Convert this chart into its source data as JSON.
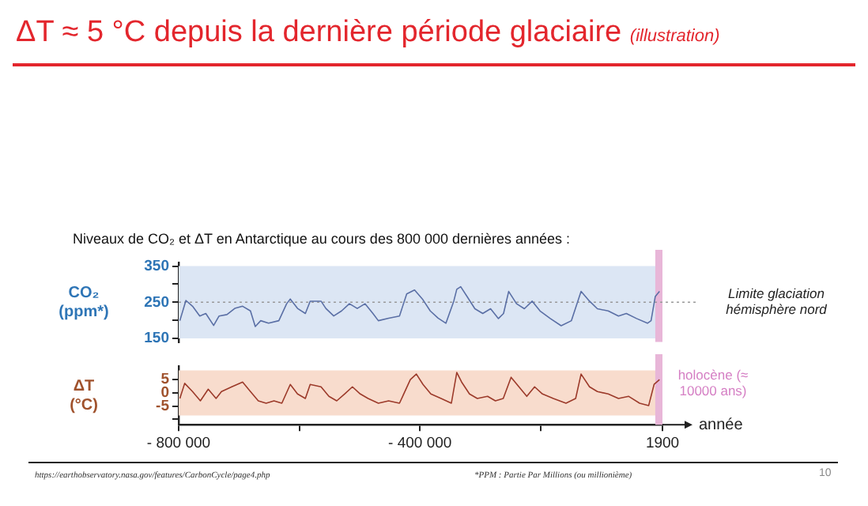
{
  "chart_data": [
    {
      "type": "line",
      "title": "ΔT ≈ 5 °C depuis la dernière période glaciaire",
      "subtitle": "(illustration)",
      "ylabel": "CO₂ (ppm*)",
      "x": [
        -798000,
        -788000,
        -777000,
        -765000,
        -755000,
        -742000,
        -733000,
        -720000,
        -707000,
        -694000,
        -681000,
        -673000,
        -664000,
        -651000,
        -634000,
        -621000,
        -615000,
        -603000,
        -590000,
        -582000,
        -564000,
        -556000,
        -543000,
        -530000,
        -517000,
        -504000,
        -491000,
        -478000,
        -469000,
        -452000,
        -434000,
        -422000,
        -409000,
        -396000,
        -383000,
        -370000,
        -357000,
        -344000,
        -339000,
        -332500,
        -322000,
        -309000,
        -296000,
        -283000,
        -270000,
        -261500,
        -253000,
        -240000,
        -227000,
        -214000,
        -201000,
        -184000,
        -166000,
        -149000,
        -133000,
        -119000,
        -106000,
        -88000,
        -71000,
        -58000,
        -41000,
        -23000,
        -17000,
        -10000,
        -3000
      ],
      "series": [
        {
          "color": "#5a6fa5",
          "values": [
            199,
            255,
            239,
            212,
            219,
            186,
            212,
            216,
            233,
            239,
            226,
            183,
            199,
            192,
            199,
            246,
            259,
            233,
            219,
            253,
            253,
            233,
            212,
            226,
            246,
            233,
            246,
            219,
            199,
            206,
            212,
            273,
            284,
            259,
            226,
            206,
            192,
            253,
            286,
            293,
            266,
            232,
            219,
            232,
            205,
            219,
            280,
            246,
            232,
            253,
            226,
            205,
            185,
            199,
            280,
            253,
            232,
            226,
            212,
            219,
            205,
            192,
            199,
            266,
            280
          ]
        }
      ],
      "xlim": [
        -800000,
        1900
      ],
      "ylim": [
        140,
        360
      ],
      "yticks": [
        150,
        {
          "value": 200,
          "label": null
        },
        250,
        {
          "value": 300,
          "label": null
        },
        350
      ],
      "tick_labels": "y",
      "bands": [
        {
          "axis": "y",
          "from": 150,
          "to": 350,
          "color": "#dce6f4"
        },
        {
          "axis": "x",
          "from": -10000,
          "to": 1900,
          "color": "#e8b6d8"
        }
      ],
      "ref_lines": [
        {
          "axis": "y",
          "value": 250,
          "label": "Limite glaciation hémisphère nord",
          "color": "#999999",
          "line_style": "dotted"
        }
      ],
      "annotations": [
        "Niveaux de CO₂ et ΔT en Antarctique au cours des 800 000 dernières années :",
        "https://earthobservatory.nasa.gov/features/CarbonCycle/page4.php",
        "*PPM : Partie Par Millions (ou millionième)",
        "10"
      ],
      "grid": false,
      "legend": false,
      "marker": "none",
      "line_style": "solid"
    },
    {
      "type": "line",
      "xlabel": "année",
      "ylabel": "ΔT (°C)",
      "x": [
        -798000,
        -790000,
        -777000,
        -764000,
        -751000,
        -738000,
        -729000,
        -712000,
        -694000,
        -681000,
        -668000,
        -655000,
        -642000,
        -629000,
        -615000,
        -603000,
        -590000,
        -582000,
        -564000,
        -551000,
        -538000,
        -525000,
        -512000,
        -499000,
        -486000,
        -469000,
        -452000,
        -434000,
        -416000,
        -406000,
        -395000,
        -382000,
        -365000,
        -348000,
        -339000,
        -331000,
        -318000,
        -305000,
        -288000,
        -275000,
        -262000,
        -249000,
        -236000,
        -223000,
        -210000,
        -197000,
        -179000,
        -158000,
        -142000,
        -133000,
        -119000,
        -106000,
        -88000,
        -71000,
        -54000,
        -36000,
        -21000,
        -12000,
        -3000
      ],
      "series": [
        {
          "color": "#9c3a2a",
          "values": [
            -2.1,
            3.6,
            0.5,
            -3,
            1.4,
            -2.1,
            0.5,
            2.3,
            4.1,
            0.5,
            -3,
            -3.9,
            -3,
            -3.9,
            3.2,
            -0.4,
            -2.1,
            3.2,
            2.3,
            -1.3,
            -3,
            -0.4,
            2.3,
            -0.4,
            -2.1,
            -3.9,
            -3,
            -3.9,
            5,
            7.1,
            3.2,
            -0.4,
            -2.1,
            -3.9,
            7.7,
            4.1,
            -0.4,
            -2.1,
            -1.3,
            -3,
            -2.1,
            5.9,
            2.3,
            -1.3,
            2.3,
            -0.4,
            -2.1,
            -3.9,
            -2.1,
            7.1,
            2.3,
            0.5,
            -0.4,
            -2.1,
            -1.3,
            -3.9,
            -4.8,
            3.2,
            5
          ]
        }
      ],
      "xlim": [
        -800000,
        1900
      ],
      "xticks": [
        {
          "value": -800000,
          "label": "- 800 000"
        },
        {
          "value": -600000,
          "label": null
        },
        {
          "value": -400000,
          "label": "- 400 000"
        },
        {
          "value": -200000,
          "label": null
        },
        1900
      ],
      "ylim": [
        -12,
        10
      ],
      "yticks": [
        {
          "value": -10,
          "label": null
        },
        -5,
        0,
        5
      ],
      "bands": [
        {
          "axis": "y",
          "from": -8.5,
          "to": 8.5,
          "color": "#f8dccd"
        },
        {
          "axis": "x",
          "from": -10000,
          "to": 1900,
          "color": "#e8b6d8",
          "label": "holocène (≈ 10000 ans)"
        }
      ],
      "grid": false,
      "legend": false,
      "marker": "none",
      "line_style": "solid"
    }
  ]
}
